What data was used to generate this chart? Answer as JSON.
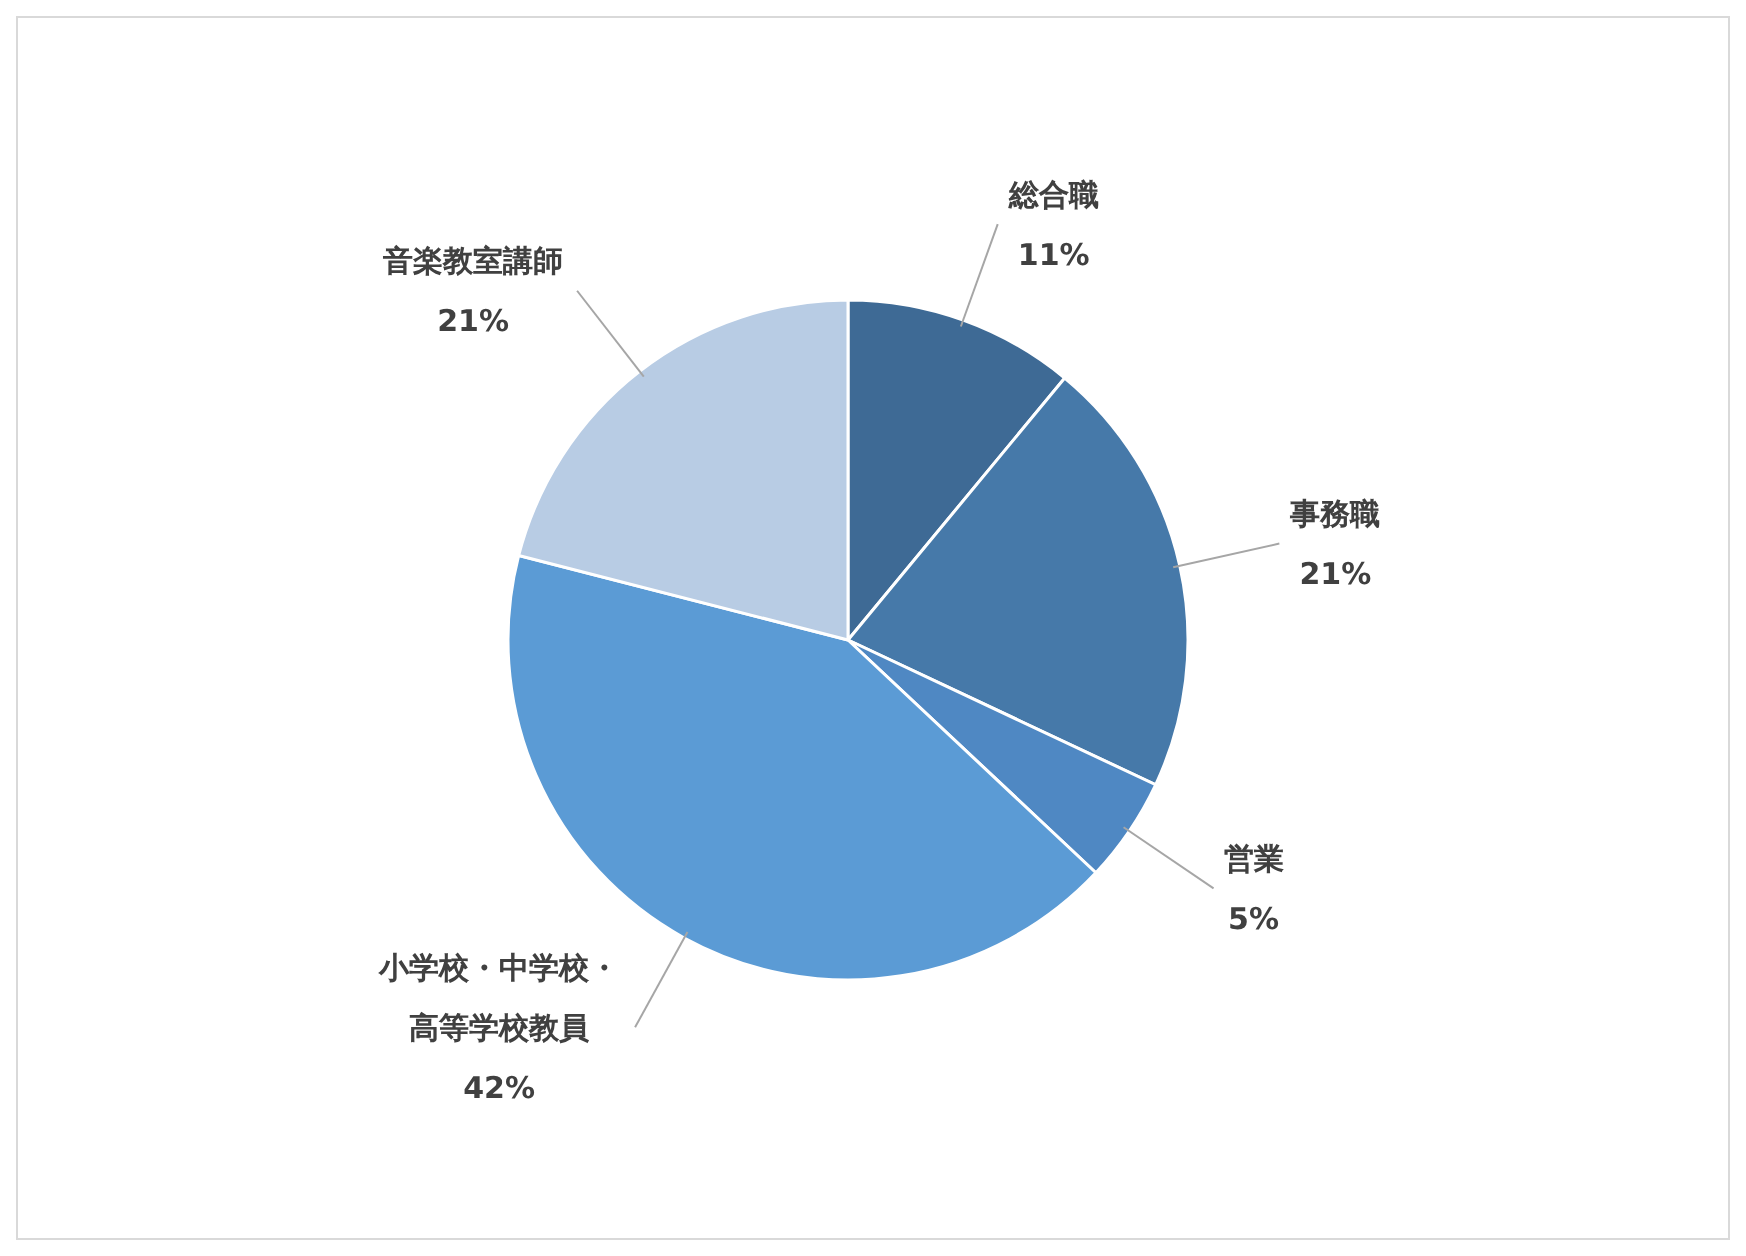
{
  "chart_data": {
    "type": "pie",
    "categories": [
      "総合職",
      "事務職",
      "営業",
      "小学校・中学校・高等学校教員",
      "音楽教室講師"
    ],
    "values": [
      11,
      21,
      5,
      42,
      21
    ],
    "colors": [
      "#3e6a95",
      "#4679a9",
      "#4f88c3",
      "#5b9bd5",
      "#b8cce4"
    ],
    "value_labels": [
      "11%",
      "21%",
      "5%",
      "42%",
      "21%"
    ]
  }
}
